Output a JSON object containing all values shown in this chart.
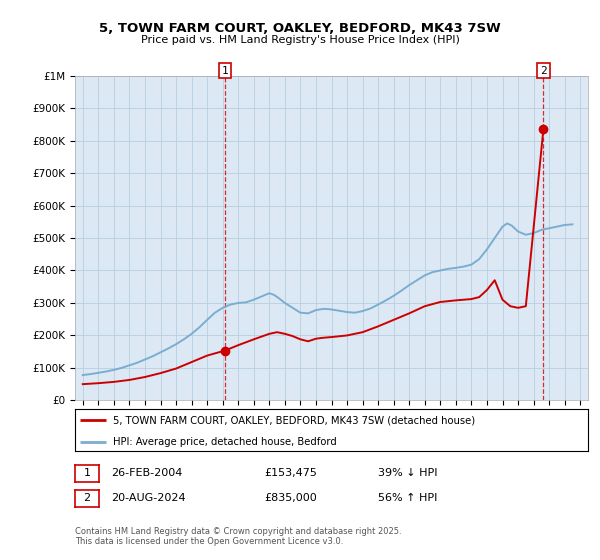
{
  "title_line1": "5, TOWN FARM COURT, OAKLEY, BEDFORD, MK43 7SW",
  "title_line2": "Price paid vs. HM Land Registry's House Price Index (HPI)",
  "ylim": [
    0,
    1000000
  ],
  "xlim_start": 1994.5,
  "xlim_end": 2027.5,
  "legend_line1": "5, TOWN FARM COURT, OAKLEY, BEDFORD, MK43 7SW (detached house)",
  "legend_line2": "HPI: Average price, detached house, Bedford",
  "annotation1_date": "26-FEB-2004",
  "annotation1_price": "£153,475",
  "annotation1_hpi": "39% ↓ HPI",
  "annotation2_date": "20-AUG-2024",
  "annotation2_price": "£835,000",
  "annotation2_hpi": "56% ↑ HPI",
  "copyright_text": "Contains HM Land Registry data © Crown copyright and database right 2025.\nThis data is licensed under the Open Government Licence v3.0.",
  "red_color": "#cc0000",
  "blue_color": "#7aadcf",
  "chart_bg": "#dce9f5",
  "background_color": "#ffffff",
  "grid_color": "#b8cfe0",
  "sale1_x": 2004.15,
  "sale1_y": 153475,
  "sale2_x": 2024.63,
  "sale2_y": 835000,
  "vline1_x": 2004.15,
  "vline2_x": 2024.63,
  "hpi_years": [
    1995,
    1995.5,
    1996,
    1996.5,
    1997,
    1997.5,
    1998,
    1998.5,
    1999,
    1999.5,
    2000,
    2000.5,
    2001,
    2001.5,
    2002,
    2002.5,
    2003,
    2003.5,
    2004,
    2004.5,
    2005,
    2005.5,
    2006,
    2006.5,
    2007,
    2007.3,
    2007.6,
    2008,
    2008.5,
    2009,
    2009.5,
    2010,
    2010.5,
    2011,
    2011.5,
    2012,
    2012.5,
    2013,
    2013.5,
    2014,
    2014.5,
    2015,
    2015.5,
    2016,
    2016.5,
    2017,
    2017.5,
    2018,
    2018.5,
    2019,
    2019.5,
    2020,
    2020.5,
    2021,
    2021.5,
    2022,
    2022.3,
    2022.6,
    2023,
    2023.5,
    2024,
    2024.5,
    2025,
    2025.5,
    2026,
    2026.5
  ],
  "hpi_values": [
    78000,
    81000,
    85000,
    89000,
    94000,
    100000,
    108000,
    116000,
    126000,
    136000,
    148000,
    160000,
    173000,
    188000,
    205000,
    225000,
    248000,
    270000,
    285000,
    295000,
    300000,
    302000,
    310000,
    320000,
    330000,
    325000,
    315000,
    300000,
    285000,
    270000,
    268000,
    278000,
    282000,
    280000,
    276000,
    272000,
    270000,
    275000,
    283000,
    295000,
    308000,
    322000,
    338000,
    355000,
    370000,
    385000,
    395000,
    400000,
    405000,
    408000,
    412000,
    418000,
    435000,
    465000,
    500000,
    535000,
    545000,
    538000,
    520000,
    510000,
    515000,
    525000,
    530000,
    535000,
    540000,
    542000
  ],
  "red_years": [
    1995,
    1996,
    1997,
    1998,
    1999,
    2000,
    2001,
    2002,
    2003,
    2004.15,
    2005,
    2006,
    2007,
    2007.5,
    2008,
    2008.5,
    2009,
    2009.5,
    2010,
    2010.5,
    2011,
    2012,
    2013,
    2014,
    2015,
    2016,
    2017,
    2018,
    2019,
    2020,
    2020.5,
    2021,
    2021.5,
    2022,
    2022.5,
    2023,
    2023.5,
    2024.63
  ],
  "red_values": [
    50000,
    53000,
    57000,
    63000,
    72000,
    84000,
    98000,
    118000,
    138000,
    153475,
    170000,
    188000,
    205000,
    210000,
    205000,
    198000,
    188000,
    182000,
    190000,
    193000,
    195000,
    200000,
    210000,
    228000,
    248000,
    268000,
    290000,
    303000,
    308000,
    312000,
    318000,
    340000,
    370000,
    310000,
    290000,
    285000,
    290000,
    835000
  ]
}
